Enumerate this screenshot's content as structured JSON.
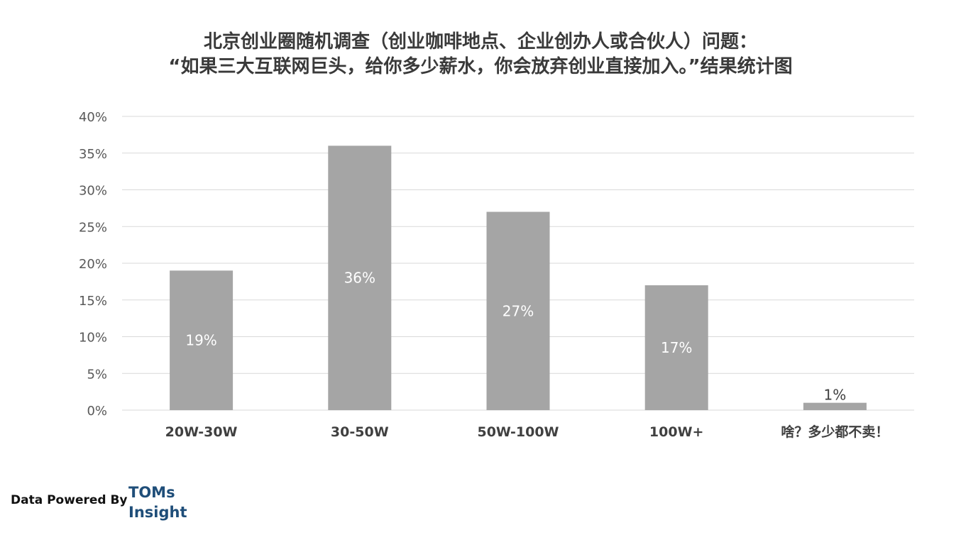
{
  "chart_data": {
    "type": "bar",
    "title_line1": "北京创业圈随机调查（创业咖啡地点、企业创办人或合伙人）问题：",
    "title_line2": "“如果三大互联网巨头，给你多少薪水，你会放弃创业直接加入。”结果统计图",
    "categories": [
      "20W-30W",
      "30-50W",
      "50W-100W",
      "100W+",
      "啥？多少都不卖！"
    ],
    "values": [
      19,
      36,
      27,
      17,
      1
    ],
    "data_labels": [
      "19%",
      "36%",
      "27%",
      "17%",
      "1%"
    ],
    "yticks": [
      "0%",
      "5%",
      "10%",
      "15%",
      "20%",
      "25%",
      "30%",
      "35%",
      "40%"
    ],
    "ylim": [
      0,
      40
    ],
    "grid": true,
    "legend": "none",
    "bar_color": "#a5a5a5",
    "grid_color": "#d9d9d9"
  },
  "footer": {
    "powered_by": "Data Powered By",
    "logo_line1": "TOMs",
    "logo_line2": "Insight"
  },
  "colors": {
    "logo": "#1f4e79",
    "label_inside": "#ffffff",
    "label_outside": "#404040"
  }
}
